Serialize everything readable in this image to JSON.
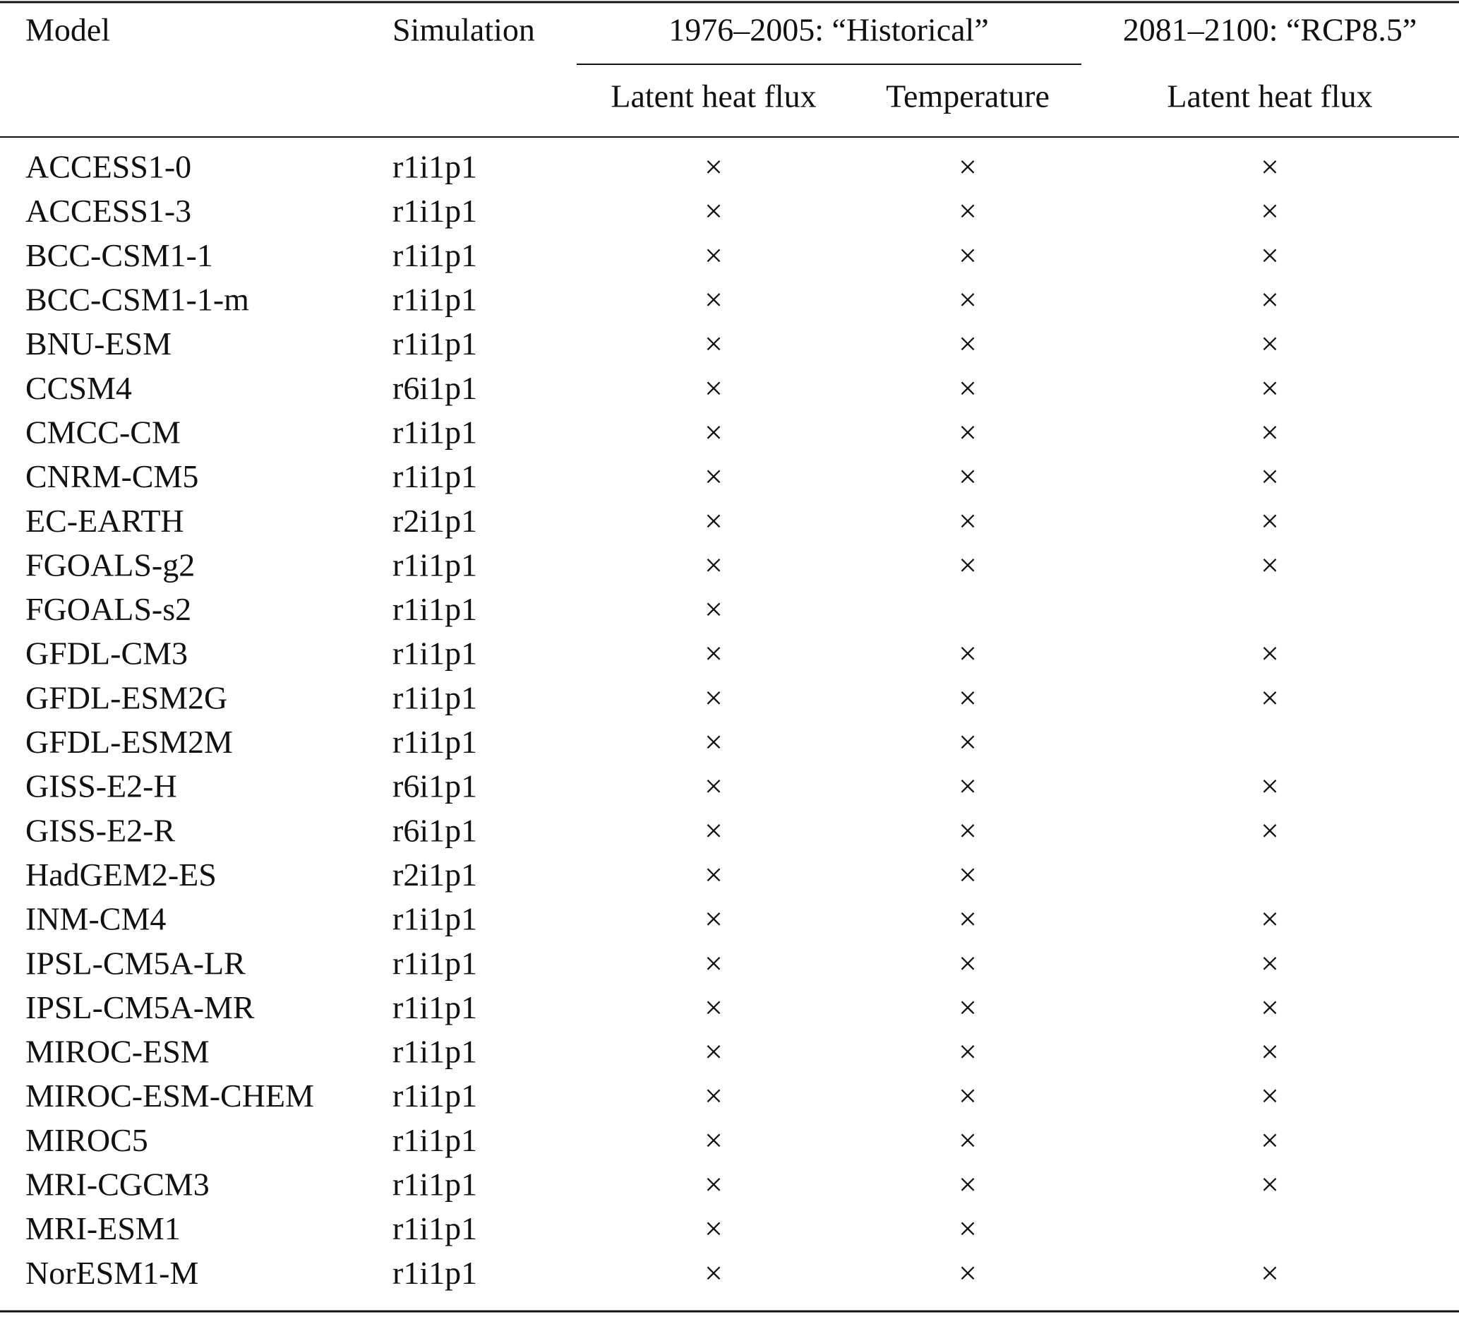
{
  "table": {
    "header": {
      "model": "Model",
      "simulation": "Simulation",
      "historical": "1976–2005: “Historical”",
      "rcp": "2081–2100: “RCP8.5”",
      "hist_latent": "Latent heat flux",
      "hist_temperature": "Temperature",
      "rcp_latent": "Latent heat flux"
    },
    "rows": [
      {
        "model": "ACCESS1-0",
        "simulation": "r1i1p1",
        "marks": [
          "×",
          "×",
          "×"
        ]
      },
      {
        "model": "ACCESS1-3",
        "simulation": "r1i1p1",
        "marks": [
          "×",
          "×",
          "×"
        ]
      },
      {
        "model": "BCC-CSM1-1",
        "simulation": "r1i1p1",
        "marks": [
          "×",
          "×",
          "×"
        ]
      },
      {
        "model": "BCC-CSM1-1-m",
        "simulation": "r1i1p1",
        "marks": [
          "×",
          "×",
          "×"
        ]
      },
      {
        "model": "BNU-ESM",
        "simulation": "r1i1p1",
        "marks": [
          "×",
          "×",
          "×"
        ]
      },
      {
        "model": "CCSM4",
        "simulation": "r6i1p1",
        "marks": [
          "×",
          "×",
          "×"
        ]
      },
      {
        "model": "CMCC-CM",
        "simulation": "r1i1p1",
        "marks": [
          "×",
          "×",
          "×"
        ]
      },
      {
        "model": "CNRM-CM5",
        "simulation": "r1i1p1",
        "marks": [
          "×",
          "×",
          "×"
        ]
      },
      {
        "model": "EC-EARTH",
        "simulation": "r2i1p1",
        "marks": [
          "×",
          "×",
          "×"
        ]
      },
      {
        "model": "FGOALS-g2",
        "simulation": "r1i1p1",
        "marks": [
          "×",
          "×",
          "×"
        ]
      },
      {
        "model": "FGOALS-s2",
        "simulation": "r1i1p1",
        "marks": [
          "×",
          null,
          null
        ]
      },
      {
        "model": "GFDL-CM3",
        "simulation": "r1i1p1",
        "marks": [
          "×",
          "×",
          "×"
        ]
      },
      {
        "model": "GFDL-ESM2G",
        "simulation": "r1i1p1",
        "marks": [
          "×",
          "×",
          "×"
        ]
      },
      {
        "model": "GFDL-ESM2M",
        "simulation": "r1i1p1",
        "marks": [
          "×",
          "×",
          null
        ]
      },
      {
        "model": "GISS-E2-H",
        "simulation": "r6i1p1",
        "marks": [
          "×",
          "×",
          "×"
        ]
      },
      {
        "model": "GISS-E2-R",
        "simulation": "r6i1p1",
        "marks": [
          "×",
          "×",
          "×"
        ]
      },
      {
        "model": "HadGEM2-ES",
        "simulation": "r2i1p1",
        "marks": [
          "×",
          "×",
          null
        ]
      },
      {
        "model": "INM-CM4",
        "simulation": "r1i1p1",
        "marks": [
          "×",
          "×",
          "×"
        ]
      },
      {
        "model": "IPSL-CM5A-LR",
        "simulation": "r1i1p1",
        "marks": [
          "×",
          "×",
          "×"
        ]
      },
      {
        "model": "IPSL-CM5A-MR",
        "simulation": "r1i1p1",
        "marks": [
          "×",
          "×",
          "×"
        ]
      },
      {
        "model": "MIROC-ESM",
        "simulation": "r1i1p1",
        "marks": [
          "×",
          "×",
          "×"
        ]
      },
      {
        "model": "MIROC-ESM-CHEM",
        "simulation": "r1i1p1",
        "marks": [
          "×",
          "×",
          "×"
        ]
      },
      {
        "model": "MIROC5",
        "simulation": "r1i1p1",
        "marks": [
          "×",
          "×",
          "×"
        ]
      },
      {
        "model": "MRI-CGCM3",
        "simulation": "r1i1p1",
        "marks": [
          "×",
          "×",
          "×"
        ]
      },
      {
        "model": "MRI-ESM1",
        "simulation": "r1i1p1",
        "marks": [
          "×",
          "×",
          null
        ]
      },
      {
        "model": "NorESM1-M",
        "simulation": "r1i1p1",
        "marks": [
          "×",
          "×",
          "×"
        ]
      }
    ]
  }
}
